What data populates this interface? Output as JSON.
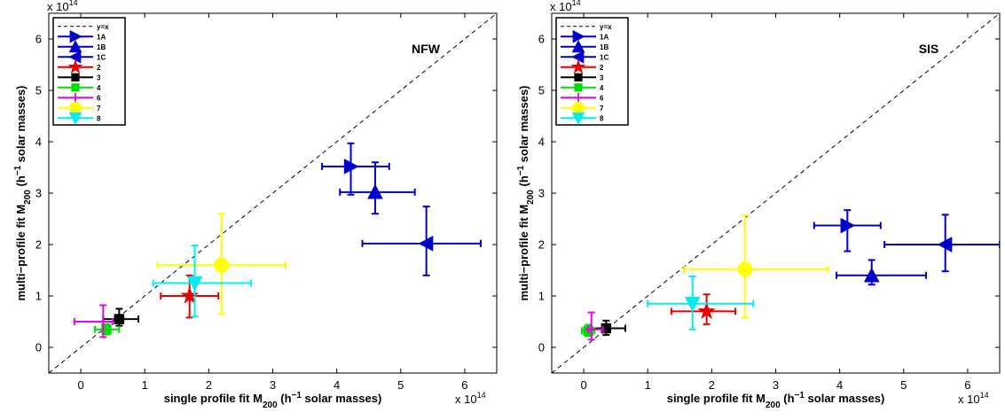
{
  "chart_data": [
    {
      "type": "scatter",
      "title": "",
      "panel_label": "NFW",
      "xlabel": "single profile fit M200 (h−1 solar masses)",
      "ylabel": "multi−profile fit M200 (h−1 solar masses)",
      "x_multiplier": "x 10^14",
      "y_multiplier": "x 10^14",
      "xlim": [
        -0.5,
        6.5
      ],
      "ylim": [
        -0.5,
        6.5
      ],
      "xticks": [
        0,
        1,
        2,
        3,
        4,
        5,
        6
      ],
      "yticks": [
        0,
        1,
        2,
        3,
        4,
        5,
        6
      ],
      "grid": false,
      "legend_position": "top-left",
      "reference_line": {
        "label": "y=x",
        "style": "dashed",
        "color": "#000000"
      },
      "series": [
        {
          "name": "1A",
          "marker": "triangle-right",
          "color": "#0000cc",
          "x": 4.22,
          "y": 3.52,
          "xerr": [
            0.45,
            0.6
          ],
          "yerr": [
            0.55,
            0.45
          ]
        },
        {
          "name": "1B",
          "marker": "triangle-up",
          "color": "#0000cc",
          "x": 4.6,
          "y": 3.02,
          "xerr": [
            0.55,
            0.62
          ],
          "yerr": [
            0.42,
            0.58
          ]
        },
        {
          "name": "1C",
          "marker": "triangle-left",
          "color": "#0000cc",
          "x": 5.4,
          "y": 2.02,
          "xerr": [
            1.0,
            0.85
          ],
          "yerr": [
            0.62,
            0.72
          ]
        },
        {
          "name": "2",
          "marker": "star",
          "color": "#e80000",
          "x": 1.7,
          "y": 1.0,
          "xerr": [
            0.45,
            0.45
          ],
          "yerr": [
            0.42,
            0.4
          ]
        },
        {
          "name": "3",
          "marker": "square",
          "color": "#000000",
          "x": 0.6,
          "y": 0.55,
          "xerr": [
            0.25,
            0.3
          ],
          "yerr": [
            0.13,
            0.2
          ]
        },
        {
          "name": "4",
          "marker": "square",
          "color": "#00dd00",
          "x": 0.4,
          "y": 0.35,
          "xerr": [
            0.18,
            0.2
          ],
          "yerr": [
            0.1,
            0.1
          ]
        },
        {
          "name": "6",
          "marker": "plus",
          "color": "#ee00ee",
          "x": 0.35,
          "y": 0.5,
          "xerr": [
            0.45,
            0.15
          ],
          "yerr": [
            0.3,
            0.32
          ]
        },
        {
          "name": "7",
          "marker": "circle",
          "color": "#ffff00",
          "x": 2.2,
          "y": 1.6,
          "xerr": [
            1.0,
            1.0
          ],
          "yerr": [
            0.95,
            1.0
          ]
        },
        {
          "name": "8",
          "marker": "triangle-down",
          "color": "#00eeee",
          "x": 1.78,
          "y": 1.25,
          "xerr": [
            0.65,
            0.88
          ],
          "yerr": [
            0.65,
            0.73
          ]
        }
      ]
    },
    {
      "type": "scatter",
      "title": "",
      "panel_label": "SIS",
      "xlabel": "single profile fit M200 (h−1 solar masses)",
      "ylabel": "multi−profile fit M200 (h−1 solar masses)",
      "x_multiplier": "x 10^14",
      "y_multiplier": "x 10^14",
      "xlim": [
        -0.5,
        6.5
      ],
      "ylim": [
        -0.5,
        6.5
      ],
      "xticks": [
        0,
        1,
        2,
        3,
        4,
        5,
        6
      ],
      "yticks": [
        0,
        1,
        2,
        3,
        4,
        5,
        6
      ],
      "grid": false,
      "legend_position": "top-left",
      "reference_line": {
        "label": "y=x",
        "style": "dashed",
        "color": "#000000"
      },
      "series": [
        {
          "name": "1A",
          "marker": "triangle-right",
          "color": "#0000cc",
          "x": 4.12,
          "y": 2.37,
          "xerr": [
            0.52,
            0.52
          ],
          "yerr": [
            0.5,
            0.3
          ]
        },
        {
          "name": "1B",
          "marker": "triangle-up",
          "color": "#0000cc",
          "x": 4.5,
          "y": 1.4,
          "xerr": [
            0.55,
            0.85
          ],
          "yerr": [
            0.18,
            0.3
          ]
        },
        {
          "name": "1C",
          "marker": "triangle-left",
          "color": "#0000cc",
          "x": 5.65,
          "y": 2.0,
          "xerr": [
            0.95,
            0.85
          ],
          "yerr": [
            0.52,
            0.58
          ]
        },
        {
          "name": "2",
          "marker": "star",
          "color": "#e80000",
          "x": 1.92,
          "y": 0.7,
          "xerr": [
            0.55,
            0.45
          ],
          "yerr": [
            0.25,
            0.33
          ]
        },
        {
          "name": "3",
          "marker": "square",
          "color": "#000000",
          "x": 0.35,
          "y": 0.37,
          "xerr": [
            0.25,
            0.3
          ],
          "yerr": [
            0.13,
            0.15
          ]
        },
        {
          "name": "4",
          "marker": "square",
          "color": "#00dd00",
          "x": 0.07,
          "y": 0.32,
          "xerr": [
            0.1,
            0.1
          ],
          "yerr": [
            0.1,
            0.12
          ]
        },
        {
          "name": "6",
          "marker": "plus",
          "color": "#ee00ee",
          "x": 0.12,
          "y": 0.35,
          "xerr": [
            0.05,
            0.18
          ],
          "yerr": [
            0.2,
            0.33
          ]
        },
        {
          "name": "7",
          "marker": "circle",
          "color": "#ffff00",
          "x": 2.52,
          "y": 1.52,
          "xerr": [
            0.95,
            1.3
          ],
          "yerr": [
            0.95,
            1.05
          ]
        },
        {
          "name": "8",
          "marker": "triangle-down",
          "color": "#00eeee",
          "x": 1.7,
          "y": 0.85,
          "xerr": [
            0.7,
            0.95
          ],
          "yerr": [
            0.5,
            0.53
          ]
        }
      ]
    }
  ]
}
